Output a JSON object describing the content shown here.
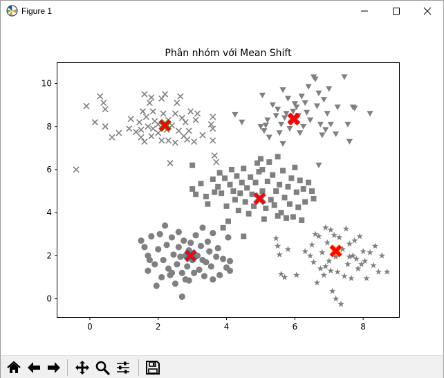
{
  "window": {
    "title": "Figure 1",
    "icons": {
      "app": "matplotlib-logo-icon",
      "minimize": "minimize-icon",
      "maximize": "maximize-icon",
      "close": "close-icon"
    }
  },
  "toolbar": {
    "items": [
      {
        "name": "home-button",
        "icon": "home-icon"
      },
      {
        "name": "back-button",
        "icon": "arrow-left-icon"
      },
      {
        "name": "forward-button",
        "icon": "arrow-right-icon"
      },
      {
        "name": "pan-button",
        "icon": "move-icon"
      },
      {
        "name": "zoom-button",
        "icon": "magnifier-icon"
      },
      {
        "name": "subplots-button",
        "icon": "sliders-icon"
      },
      {
        "name": "save-button",
        "icon": "floppy-disk-icon"
      }
    ]
  },
  "chart_data": {
    "type": "scatter",
    "title": "Phân nhóm với Mean Shift",
    "xlabel": "",
    "ylabel": "",
    "xlim": [
      -0.95,
      9.05
    ],
    "ylim": [
      -0.85,
      10.95
    ],
    "xticks": [
      0,
      2,
      4,
      6,
      8
    ],
    "yticks": [
      0,
      2,
      4,
      6,
      8,
      10
    ],
    "grid": false,
    "point_color": "#808080",
    "center_color": "#ff0000",
    "series": [
      {
        "marker": "x",
        "points": [
          [
            -0.4,
            6.0
          ],
          [
            -0.1,
            8.95
          ],
          [
            0.15,
            8.2
          ],
          [
            0.3,
            9.4
          ],
          [
            0.4,
            9.1
          ],
          [
            0.45,
            8.8
          ],
          [
            0.45,
            8.0
          ],
          [
            0.65,
            7.5
          ],
          [
            0.85,
            7.7
          ],
          [
            1.15,
            7.9
          ],
          [
            1.2,
            8.35
          ],
          [
            1.35,
            7.75
          ],
          [
            1.45,
            8.2
          ],
          [
            1.5,
            7.85
          ],
          [
            1.5,
            7.5
          ],
          [
            1.55,
            8.7
          ],
          [
            1.6,
            9.5
          ],
          [
            1.6,
            7.3
          ],
          [
            1.65,
            8.45
          ],
          [
            1.7,
            8.0
          ],
          [
            1.75,
            9.1
          ],
          [
            1.8,
            9.35
          ],
          [
            1.8,
            7.55
          ],
          [
            1.85,
            7.9
          ],
          [
            1.85,
            8.7
          ],
          [
            1.9,
            8.25
          ],
          [
            2.0,
            7.7
          ],
          [
            2.0,
            8.1
          ],
          [
            2.1,
            9.3
          ],
          [
            2.1,
            7.35
          ],
          [
            2.15,
            8.6
          ],
          [
            2.2,
            9.5
          ],
          [
            2.25,
            7.85
          ],
          [
            2.3,
            7.35
          ],
          [
            2.3,
            8.3
          ],
          [
            2.35,
            6.3
          ],
          [
            2.4,
            8.05
          ],
          [
            2.5,
            8.6
          ],
          [
            2.5,
            7.25
          ],
          [
            2.55,
            9.1
          ],
          [
            2.6,
            7.8
          ],
          [
            2.65,
            9.4
          ],
          [
            2.7,
            8.4
          ],
          [
            2.75,
            7.55
          ],
          [
            2.8,
            8.2
          ],
          [
            2.85,
            7.4
          ],
          [
            2.9,
            7.8
          ],
          [
            2.95,
            8.7
          ],
          [
            3.05,
            7.3
          ],
          [
            3.1,
            8.3
          ],
          [
            3.15,
            8.6
          ],
          [
            3.3,
            7.6
          ],
          [
            3.55,
            8.1
          ],
          [
            3.6,
            8.45
          ],
          [
            3.6,
            7.9
          ],
          [
            3.6,
            7.35
          ],
          [
            3.65,
            6.65
          ],
          [
            3.7,
            6.35
          ]
        ],
        "center": [
          2.2,
          8.05
        ],
        "center_edge": "#2ca02c"
      },
      {
        "marker": "v",
        "points": [
          [
            4.25,
            8.55
          ],
          [
            4.45,
            8.2
          ],
          [
            5.05,
            9.45
          ],
          [
            5.0,
            8.0
          ],
          [
            5.1,
            7.8
          ],
          [
            5.15,
            8.05
          ],
          [
            5.2,
            8.3
          ],
          [
            5.25,
            7.5
          ],
          [
            5.35,
            9.0
          ],
          [
            5.45,
            8.5
          ],
          [
            5.5,
            8.8
          ],
          [
            5.55,
            7.7
          ],
          [
            5.6,
            8.1
          ],
          [
            5.65,
            9.7
          ],
          [
            5.65,
            7.2
          ],
          [
            5.7,
            8.4
          ],
          [
            5.75,
            8.6
          ],
          [
            5.8,
            9.3
          ],
          [
            5.85,
            7.9
          ],
          [
            5.9,
            8.2
          ],
          [
            5.95,
            8.7
          ],
          [
            6.0,
            9.05
          ],
          [
            6.05,
            8.9
          ],
          [
            6.1,
            8.5
          ],
          [
            6.15,
            7.7
          ],
          [
            6.2,
            9.4
          ],
          [
            6.25,
            8.0
          ],
          [
            6.3,
            9.1
          ],
          [
            6.35,
            8.65
          ],
          [
            6.4,
            9.85
          ],
          [
            6.45,
            8.3
          ],
          [
            6.55,
            10.3
          ],
          [
            6.6,
            10.2
          ],
          [
            6.65,
            8.95
          ],
          [
            6.7,
            9.55
          ],
          [
            6.75,
            8.1
          ],
          [
            6.8,
            7.6
          ],
          [
            6.85,
            9.25
          ],
          [
            6.9,
            7.85
          ],
          [
            6.95,
            8.6
          ],
          [
            7.0,
            9.75
          ],
          [
            7.05,
            8.1
          ],
          [
            7.2,
            7.65
          ],
          [
            7.25,
            8.9
          ],
          [
            7.45,
            10.3
          ],
          [
            7.55,
            8.1
          ],
          [
            7.6,
            7.3
          ],
          [
            7.7,
            8.9
          ],
          [
            7.75,
            8.85
          ],
          [
            8.2,
            8.6
          ],
          [
            6.7,
            6.2
          ]
        ],
        "center": [
          5.97,
          8.35
        ],
        "center_edge": "#d62728"
      },
      {
        "marker": "s",
        "points": [
          [
            3.0,
            5.1
          ],
          [
            3.1,
            4.85
          ],
          [
            3.25,
            5.35
          ],
          [
            3.4,
            4.75
          ],
          [
            3.45,
            4.4
          ],
          [
            3.6,
            5.55
          ],
          [
            3.65,
            4.95
          ],
          [
            3.75,
            5.2
          ],
          [
            3.8,
            5.85
          ],
          [
            3.85,
            4.9
          ],
          [
            3.95,
            5.6
          ],
          [
            4.0,
            4.3
          ],
          [
            4.05,
            3.6
          ],
          [
            4.1,
            5.3
          ],
          [
            4.15,
            6.0
          ],
          [
            4.2,
            5.0
          ],
          [
            4.25,
            4.6
          ],
          [
            4.3,
            5.7
          ],
          [
            4.35,
            4.1
          ],
          [
            4.4,
            4.9
          ],
          [
            4.45,
            5.4
          ],
          [
            4.5,
            6.05
          ],
          [
            4.55,
            4.5
          ],
          [
            4.6,
            5.15
          ],
          [
            4.65,
            3.95
          ],
          [
            4.7,
            5.65
          ],
          [
            4.75,
            4.85
          ],
          [
            4.8,
            4.3
          ],
          [
            4.85,
            5.4
          ],
          [
            4.9,
            6.3
          ],
          [
            4.95,
            5.9
          ],
          [
            5.0,
            4.65
          ],
          [
            5.05,
            5.0
          ],
          [
            5.05,
            6.0
          ],
          [
            5.1,
            3.7
          ],
          [
            5.15,
            4.2
          ],
          [
            5.2,
            5.45
          ],
          [
            5.25,
            6.35
          ],
          [
            5.3,
            4.6
          ],
          [
            5.35,
            5.75
          ],
          [
            5.4,
            4.35
          ],
          [
            5.45,
            5.0
          ],
          [
            5.5,
            3.85
          ],
          [
            5.55,
            5.3
          ],
          [
            5.6,
            4.0
          ],
          [
            5.65,
            5.95
          ],
          [
            5.7,
            4.7
          ],
          [
            5.75,
            3.75
          ],
          [
            5.8,
            5.2
          ],
          [
            5.85,
            4.4
          ],
          [
            5.9,
            5.6
          ],
          [
            5.95,
            3.8
          ],
          [
            6.05,
            4.95
          ],
          [
            6.1,
            4.25
          ],
          [
            6.15,
            5.5
          ],
          [
            6.2,
            3.65
          ],
          [
            6.25,
            5.1
          ],
          [
            6.3,
            4.5
          ],
          [
            6.4,
            5.4
          ],
          [
            6.5,
            5.0
          ],
          [
            6.55,
            4.65
          ],
          [
            5.0,
            6.5
          ],
          [
            5.5,
            6.6
          ],
          [
            6.0,
            6.1
          ],
          [
            4.5,
            2.9
          ],
          [
            3.9,
            3.3
          ],
          [
            3.0,
            6.2
          ]
        ],
        "center": [
          4.97,
          4.65
        ],
        "center_edge": "#7f7f7f"
      },
      {
        "marker": "o",
        "points": [
          [
            1.5,
            2.7
          ],
          [
            1.6,
            2.4
          ],
          [
            1.7,
            2.0
          ],
          [
            1.7,
            1.3
          ],
          [
            1.75,
            1.8
          ],
          [
            1.8,
            2.9
          ],
          [
            1.9,
            1.6
          ],
          [
            1.95,
            0.6
          ],
          [
            2.0,
            2.3
          ],
          [
            2.05,
            3.0
          ],
          [
            2.1,
            1.0
          ],
          [
            2.15,
            1.8
          ],
          [
            2.2,
            3.4
          ],
          [
            2.25,
            2.5
          ],
          [
            2.3,
            1.4
          ],
          [
            2.35,
            1.1
          ],
          [
            2.4,
            2.85
          ],
          [
            2.45,
            2.05
          ],
          [
            2.5,
            0.7
          ],
          [
            2.55,
            1.6
          ],
          [
            2.6,
            3.1
          ],
          [
            2.6,
            2.4
          ],
          [
            2.65,
            1.95
          ],
          [
            2.7,
            1.2
          ],
          [
            2.75,
            2.7
          ],
          [
            2.8,
            0.9
          ],
          [
            2.85,
            1.5
          ],
          [
            2.9,
            2.25
          ],
          [
            2.9,
            0.85
          ],
          [
            2.95,
            2.6
          ],
          [
            3.0,
            1.8
          ],
          [
            3.05,
            1.2
          ],
          [
            3.1,
            2.95
          ],
          [
            3.15,
            2.0
          ],
          [
            3.2,
            1.35
          ],
          [
            3.25,
            2.45
          ],
          [
            3.3,
            3.3
          ],
          [
            3.35,
            1.05
          ],
          [
            3.4,
            1.7
          ],
          [
            3.45,
            2.65
          ],
          [
            3.5,
            2.2
          ],
          [
            3.55,
            1.5
          ],
          [
            3.6,
            3.05
          ],
          [
            3.6,
            0.9
          ],
          [
            3.7,
            1.95
          ],
          [
            3.75,
            2.35
          ],
          [
            3.8,
            1.1
          ],
          [
            3.9,
            1.85
          ],
          [
            4.0,
            1.45
          ],
          [
            4.05,
            2.85
          ],
          [
            4.1,
            1.75
          ],
          [
            4.1,
            1.3
          ],
          [
            2.7,
            0.1
          ],
          [
            2.4,
            1.2
          ],
          [
            2.8,
            2.0
          ],
          [
            3.3,
            1.8
          ]
        ],
        "center": [
          2.95,
          2.0
        ],
        "center_edge": "#1f77b4"
      },
      {
        "marker": "*",
        "points": [
          [
            5.45,
            2.8
          ],
          [
            5.5,
            2.45
          ],
          [
            5.55,
            2.05
          ],
          [
            5.6,
            1.15
          ],
          [
            5.7,
            1.0
          ],
          [
            5.8,
            2.3
          ],
          [
            6.05,
            1.1
          ],
          [
            6.3,
            2.2
          ],
          [
            6.45,
            2.0
          ],
          [
            6.5,
            2.5
          ],
          [
            6.55,
            1.7
          ],
          [
            6.6,
            3.0
          ],
          [
            6.65,
            0.75
          ],
          [
            6.7,
            2.9
          ],
          [
            6.75,
            1.4
          ],
          [
            6.8,
            2.15
          ],
          [
            6.85,
            1.1
          ],
          [
            6.9,
            3.3
          ],
          [
            6.95,
            2.6
          ],
          [
            7.0,
            1.75
          ],
          [
            7.05,
            3.2
          ],
          [
            7.1,
            0.35
          ],
          [
            7.15,
            2.95
          ],
          [
            7.2,
            1.95
          ],
          [
            7.25,
            1.25
          ],
          [
            7.3,
            2.85
          ],
          [
            7.35,
            -0.25
          ],
          [
            7.4,
            2.3
          ],
          [
            7.45,
            1.05
          ],
          [
            7.5,
            3.25
          ],
          [
            7.55,
            1.6
          ],
          [
            7.6,
            2.55
          ],
          [
            7.65,
            0.95
          ],
          [
            7.7,
            2.0
          ],
          [
            7.75,
            2.7
          ],
          [
            7.8,
            1.85
          ],
          [
            7.85,
            1.4
          ],
          [
            7.9,
            2.9
          ],
          [
            7.95,
            1.6
          ],
          [
            8.0,
            2.2
          ],
          [
            8.05,
            1.75
          ],
          [
            8.1,
            0.95
          ],
          [
            8.2,
            2.15
          ],
          [
            8.3,
            1.55
          ],
          [
            8.35,
            2.45
          ],
          [
            8.45,
            1.25
          ],
          [
            8.55,
            2.0
          ],
          [
            8.7,
            1.25
          ],
          [
            7.2,
            0.0
          ],
          [
            7.05,
            1.3
          ],
          [
            7.6,
            1.95
          ],
          [
            6.9,
            1.5
          ]
        ],
        "center": [
          7.2,
          2.22
        ],
        "center_edge": "#ff7f0e"
      }
    ]
  }
}
